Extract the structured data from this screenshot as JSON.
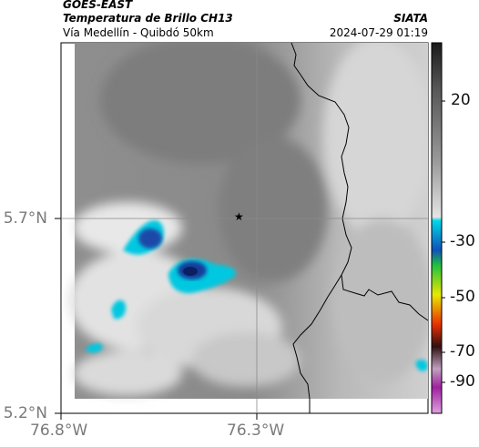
{
  "header": {
    "satellite": "GOES-EAST",
    "product": "Temperatura de Brillo CH13",
    "region": "Vía Medellín - Quibdó 50km",
    "source": "SIATA",
    "datetime": "2024-07-29 01:19"
  },
  "axes": {
    "lat_labels": [
      "5.7°N",
      "5.2°N"
    ],
    "lon_labels": [
      "76.8°W",
      "76.3°W"
    ]
  },
  "colorbar": {
    "ticks": [
      "20",
      "-30",
      "-50",
      "-70",
      "-90"
    ],
    "stops": [
      {
        "color": "#1a1a1a"
      },
      {
        "color": "#8a8a8a"
      },
      {
        "color": "#e6e6e6"
      },
      {
        "color": "#00d8e8"
      },
      {
        "color": "#1050b8"
      },
      {
        "color": "#20c040"
      },
      {
        "color": "#e8e800"
      },
      {
        "color": "#e83000"
      },
      {
        "color": "#301010"
      },
      {
        "color": "#c0a0c0"
      },
      {
        "color": "#a020a0"
      }
    ]
  },
  "marker": {
    "symbol": "★"
  }
}
